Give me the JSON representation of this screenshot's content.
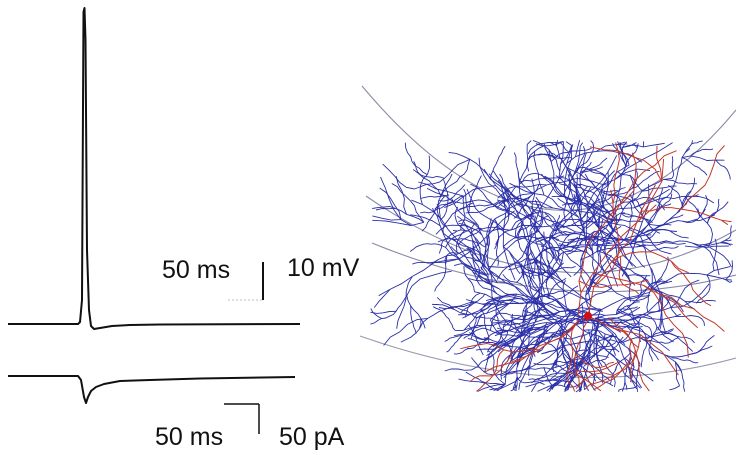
{
  "figure": {
    "voltage_trace": {
      "scale_bar": {
        "time_label": "50 ms",
        "amplitude_label": "10 mV"
      }
    },
    "current_trace": {
      "scale_bar": {
        "time_label": "50 ms",
        "amplitude_label": "50 pA"
      }
    },
    "morphology": {
      "colors": {
        "dendrites": "#2b2fa8",
        "axon": "#c0392b",
        "soma": "#d01010",
        "layer_boundaries": "#8a8aa8"
      }
    }
  }
}
